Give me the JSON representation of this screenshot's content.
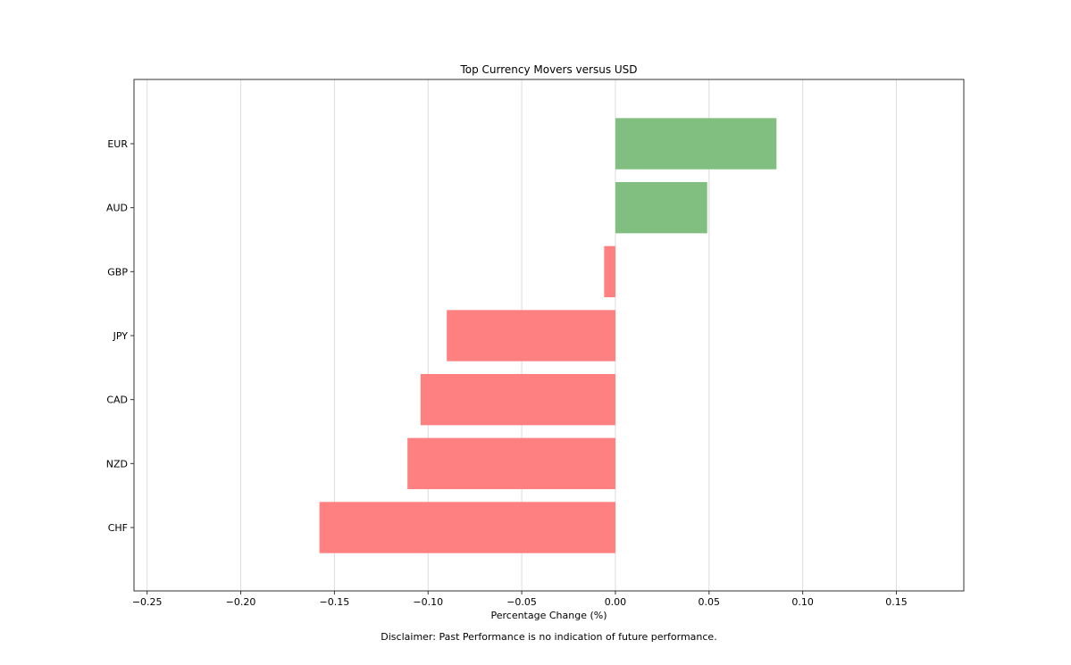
{
  "chart_data": {
    "type": "bar",
    "orientation": "horizontal",
    "title": "Top Currency Movers versus USD",
    "xlabel": "Percentage Change (%)",
    "ylabel": "",
    "categories": [
      "EUR",
      "AUD",
      "GBP",
      "JPY",
      "CAD",
      "NZD",
      "CHF"
    ],
    "values": [
      0.086,
      0.049,
      -0.006,
      -0.09,
      -0.104,
      -0.111,
      -0.158
    ],
    "xlim": [
      -0.257,
      0.186
    ],
    "xticks": [
      -0.25,
      -0.2,
      -0.15,
      -0.1,
      -0.05,
      0.0,
      0.05,
      0.1,
      0.15
    ],
    "xtick_labels": [
      "−0.25",
      "−0.20",
      "−0.15",
      "−0.10",
      "−0.05",
      "0.00",
      "0.05",
      "0.10",
      "0.15"
    ],
    "grid": "vertical",
    "colors": {
      "positive": "#80bf80",
      "negative": "#ff8080"
    },
    "footnote": "Disclaimer: Past Performance is no indication of future performance."
  }
}
